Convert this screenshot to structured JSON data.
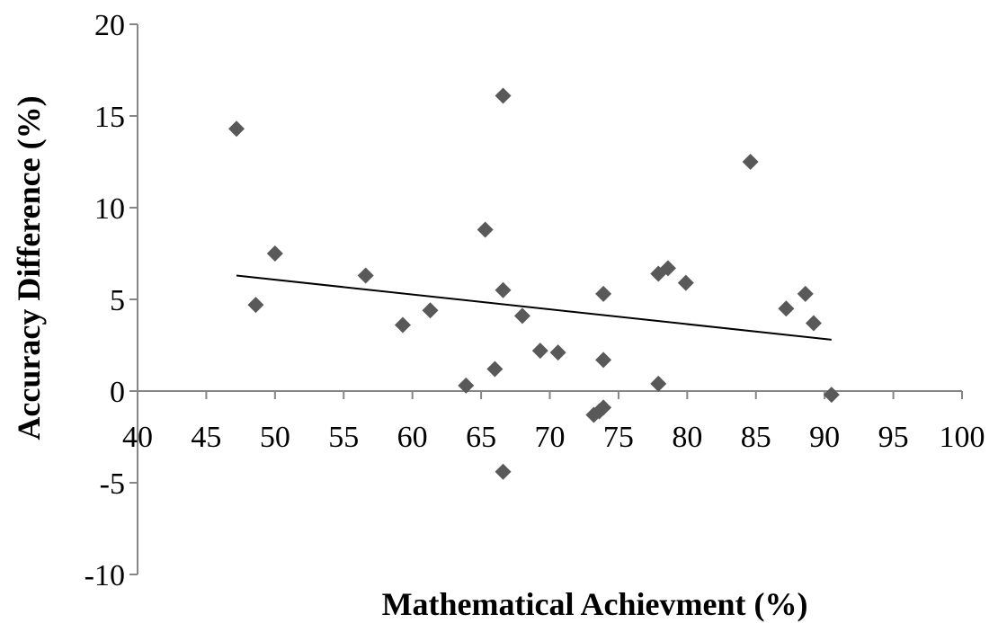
{
  "chart_data": {
    "type": "scatter",
    "title": "",
    "xlabel": "Mathematical Achievment (%)",
    "ylabel": "Accuracy Difference (%)",
    "xlim": [
      40,
      100
    ],
    "ylim": [
      -10,
      20
    ],
    "x_ticks": [
      40,
      45,
      50,
      55,
      60,
      65,
      70,
      75,
      80,
      85,
      90,
      95,
      100
    ],
    "y_ticks": [
      -10,
      -5,
      0,
      5,
      10,
      15,
      20
    ],
    "x_tick_labels": [
      "40",
      "45",
      "50",
      "55",
      "60",
      "65",
      "70",
      "75",
      "80",
      "85",
      "90",
      "95",
      "100"
    ],
    "y_tick_labels": [
      "-10",
      "-5",
      "0",
      "5",
      "10",
      "15",
      "20"
    ],
    "grid": false,
    "legend": "none",
    "marker": "diamond",
    "marker_color": "#595959",
    "series": [
      {
        "points": [
          [
            47.2,
            14.3
          ],
          [
            48.6,
            4.7
          ],
          [
            50.0,
            7.5
          ],
          [
            56.6,
            6.3
          ],
          [
            59.3,
            3.6
          ],
          [
            61.3,
            4.4
          ],
          [
            63.9,
            0.3
          ],
          [
            65.3,
            8.8
          ],
          [
            66.0,
            1.2
          ],
          [
            66.6,
            16.1
          ],
          [
            66.6,
            5.5
          ],
          [
            66.6,
            -4.4
          ],
          [
            68.0,
            4.1
          ],
          [
            69.3,
            2.2
          ],
          [
            70.6,
            2.1
          ],
          [
            73.2,
            -1.3
          ],
          [
            73.6,
            -1.1
          ],
          [
            73.9,
            -0.9
          ],
          [
            73.9,
            5.3
          ],
          [
            73.9,
            1.7
          ],
          [
            77.9,
            6.4
          ],
          [
            78.6,
            6.7
          ],
          [
            77.9,
            0.4
          ],
          [
            79.9,
            5.9
          ],
          [
            84.6,
            12.5
          ],
          [
            87.2,
            4.5
          ],
          [
            88.6,
            5.3
          ],
          [
            89.2,
            3.7
          ],
          [
            90.5,
            -0.2
          ]
        ]
      }
    ],
    "trendline": {
      "type": "linear",
      "color": "#000000",
      "from": [
        47.2,
        6.3
      ],
      "to": [
        90.5,
        2.8
      ]
    }
  }
}
